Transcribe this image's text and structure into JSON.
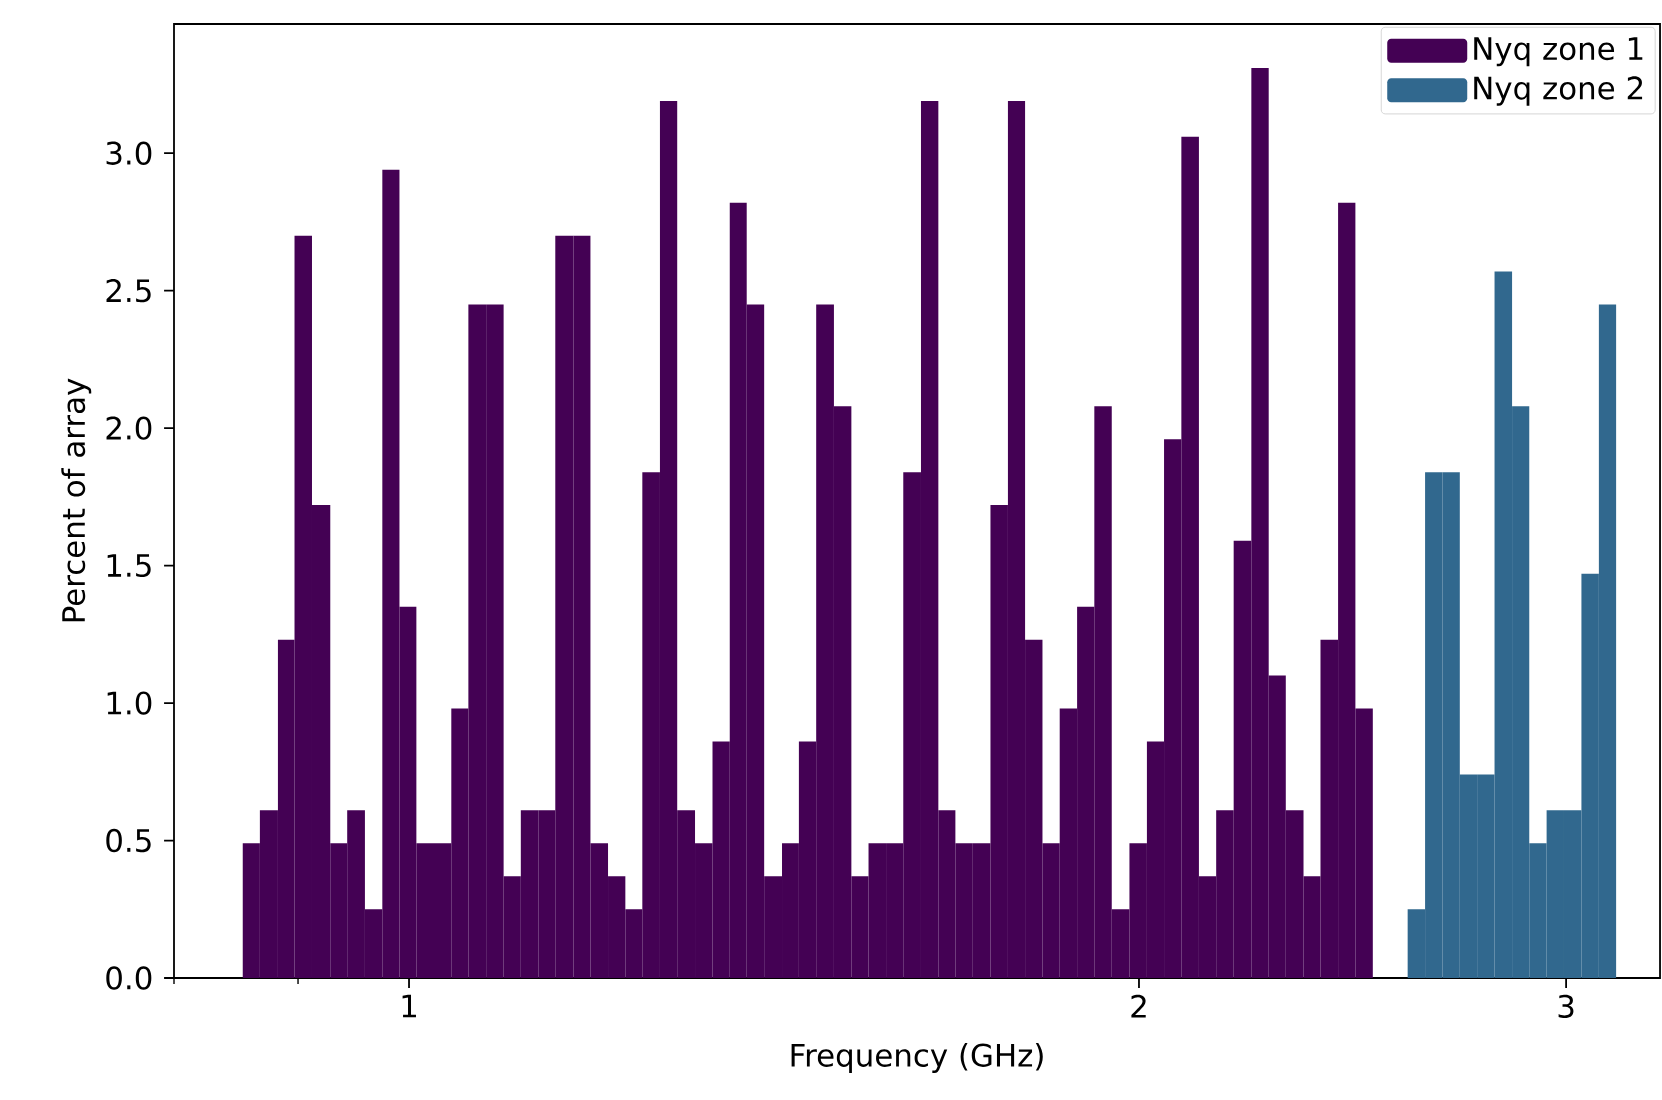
{
  "chart_data": {
    "type": "histogram",
    "xlabel": "Frequency (GHz)",
    "ylabel": "Percent of array",
    "log": "x",
    "xlim": [
      0.8,
      3.28
    ],
    "xticks": [
      {
        "value": 0.8,
        "label": null
      },
      {
        "value": 0.9,
        "label": null
      },
      {
        "value": 1,
        "label": "1"
      },
      {
        "value": 2,
        "label": "2"
      },
      {
        "value": 3,
        "label": "3"
      }
    ],
    "ylim": [
      0,
      3.47
    ],
    "yticks": [
      {
        "value": 0,
        "label": "0.0"
      },
      {
        "value": 0.5,
        "label": "0.5"
      },
      {
        "value": 1,
        "label": "1.0"
      },
      {
        "value": 1.5,
        "label": "1.5"
      },
      {
        "value": 2,
        "label": "2.0"
      },
      {
        "value": 2.5,
        "label": "2.5"
      },
      {
        "value": 3,
        "label": "3.0"
      }
    ],
    "grid": false,
    "legend": "top right",
    "bins": [
      0.854,
      0.868,
      0.883,
      0.897,
      0.912,
      0.928,
      0.943,
      0.959,
      0.975,
      0.991,
      1.007,
      1.024,
      1.041,
      1.058,
      1.076,
      1.094,
      1.112,
      1.131,
      1.149,
      1.169,
      1.188,
      1.208,
      1.228,
      1.248,
      1.269,
      1.29,
      1.312,
      1.334,
      1.356,
      1.378,
      1.401,
      1.425,
      1.448,
      1.472,
      1.497,
      1.522,
      1.547,
      1.573,
      1.599,
      1.626,
      1.653,
      1.68,
      1.708,
      1.737,
      1.766,
      1.795,
      1.825,
      1.855,
      1.886,
      1.917,
      1.949,
      1.982,
      2.015,
      2.048,
      2.082,
      2.117,
      2.152,
      2.188,
      2.225,
      2.262,
      2.299,
      2.338,
      2.376,
      2.416,
      2.456,
      2.497,
      2.581,
      2.624,
      2.668,
      2.712,
      2.757,
      2.803,
      2.85,
      2.897,
      2.945,
      2.994,
      3.044,
      3.095,
      3.146
    ],
    "series": [
      {
        "name": "Nyq zone 1",
        "color": "#440154",
        "values": [
          0.49,
          0.61,
          1.23,
          2.7,
          1.72,
          0.49,
          0.61,
          0.25,
          2.94,
          1.35,
          0.49,
          0.49,
          0.98,
          2.45,
          2.45,
          0.37,
          0.61,
          0.61,
          2.7,
          2.7,
          0.49,
          0.37,
          0.25,
          1.84,
          3.19,
          0.61,
          0.49,
          0.86,
          2.82,
          2.45,
          0.37,
          0.49,
          0.86,
          2.45,
          2.08,
          0.37,
          0.49,
          0.49,
          1.84,
          3.19,
          0.61,
          0.49,
          0.49,
          1.72,
          3.19,
          1.23,
          0.49,
          0.98,
          1.35,
          2.08,
          0.25,
          0.49,
          0.86,
          1.96,
          3.06,
          0.37,
          0.61,
          1.59,
          3.31,
          1.1,
          0.61,
          0.37,
          1.23,
          2.82,
          0.98,
          null,
          null,
          null,
          null,
          null,
          null,
          null,
          null,
          null,
          null,
          null,
          null,
          null
        ]
      },
      {
        "name": "Nyq zone 2",
        "color": "#31688e",
        "values": [
          null,
          null,
          null,
          null,
          null,
          null,
          null,
          null,
          null,
          null,
          null,
          null,
          null,
          null,
          null,
          null,
          null,
          null,
          null,
          null,
          null,
          null,
          null,
          null,
          null,
          null,
          null,
          null,
          null,
          null,
          null,
          null,
          null,
          null,
          null,
          null,
          null,
          null,
          null,
          null,
          null,
          null,
          null,
          null,
          null,
          null,
          null,
          null,
          null,
          null,
          null,
          null,
          null,
          null,
          null,
          null,
          null,
          null,
          null,
          null,
          null,
          null,
          null,
          null,
          null,
          null,
          0.25,
          1.84,
          1.84,
          0.74,
          0.74,
          2.57,
          2.08,
          0.49,
          0.61,
          0.61,
          1.47,
          2.45
        ]
      }
    ]
  }
}
